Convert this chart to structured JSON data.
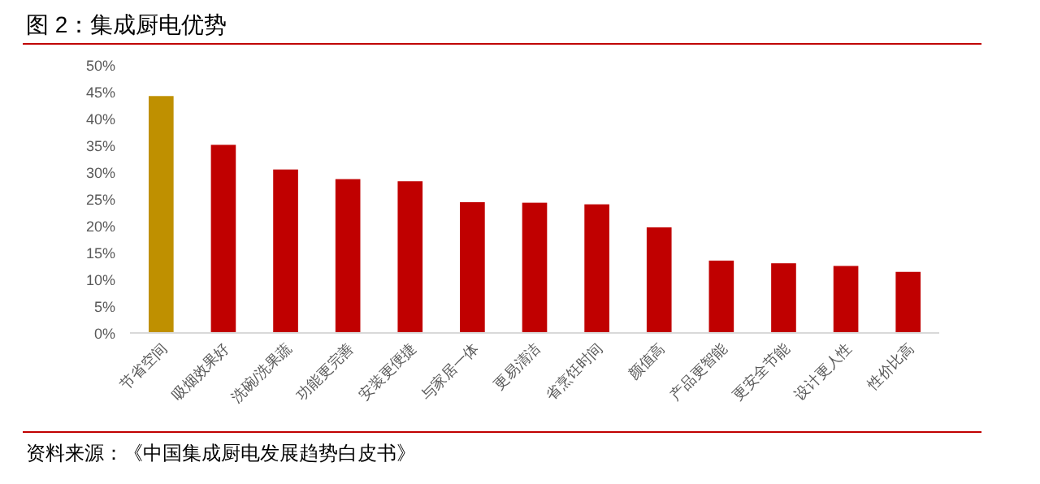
{
  "chart_data": {
    "type": "bar",
    "title": "图 2：集成厨电优势",
    "categories": [
      "节省空间",
      "吸烟效果好",
      "洗碗/洗果蔬",
      "功能更完善",
      "安装更便捷",
      "与家居一体",
      "更易清洁",
      "省烹饪时间",
      "颜值高",
      "产品更智能",
      "更安全节能",
      "设计更人性",
      "性价比高"
    ],
    "values": [
      44.2,
      35.1,
      30.5,
      28.7,
      28.3,
      24.4,
      24.3,
      24.0,
      19.7,
      13.5,
      13.0,
      12.5,
      11.4
    ],
    "colors": [
      "#bf9000",
      "#c00000",
      "#c00000",
      "#c00000",
      "#c00000",
      "#c00000",
      "#c00000",
      "#c00000",
      "#c00000",
      "#c00000",
      "#c00000",
      "#c00000",
      "#c00000"
    ],
    "ylim": [
      0,
      50
    ],
    "yticks": [
      {
        "value": 0,
        "label": "0%"
      },
      {
        "value": 5,
        "label": "5%"
      },
      {
        "value": 10,
        "label": "10%"
      },
      {
        "value": 15,
        "label": "15%"
      },
      {
        "value": 20,
        "label": "20%"
      },
      {
        "value": 25,
        "label": "25%"
      },
      {
        "value": 30,
        "label": "30%"
      },
      {
        "value": 35,
        "label": "35%"
      },
      {
        "value": 40,
        "label": "40%"
      },
      {
        "value": 45,
        "label": "45%"
      },
      {
        "value": 50,
        "label": "50%"
      }
    ],
    "grid": false,
    "annotations": [
      "资料来源：《中国集成厨电发展趋势白皮书》"
    ]
  }
}
